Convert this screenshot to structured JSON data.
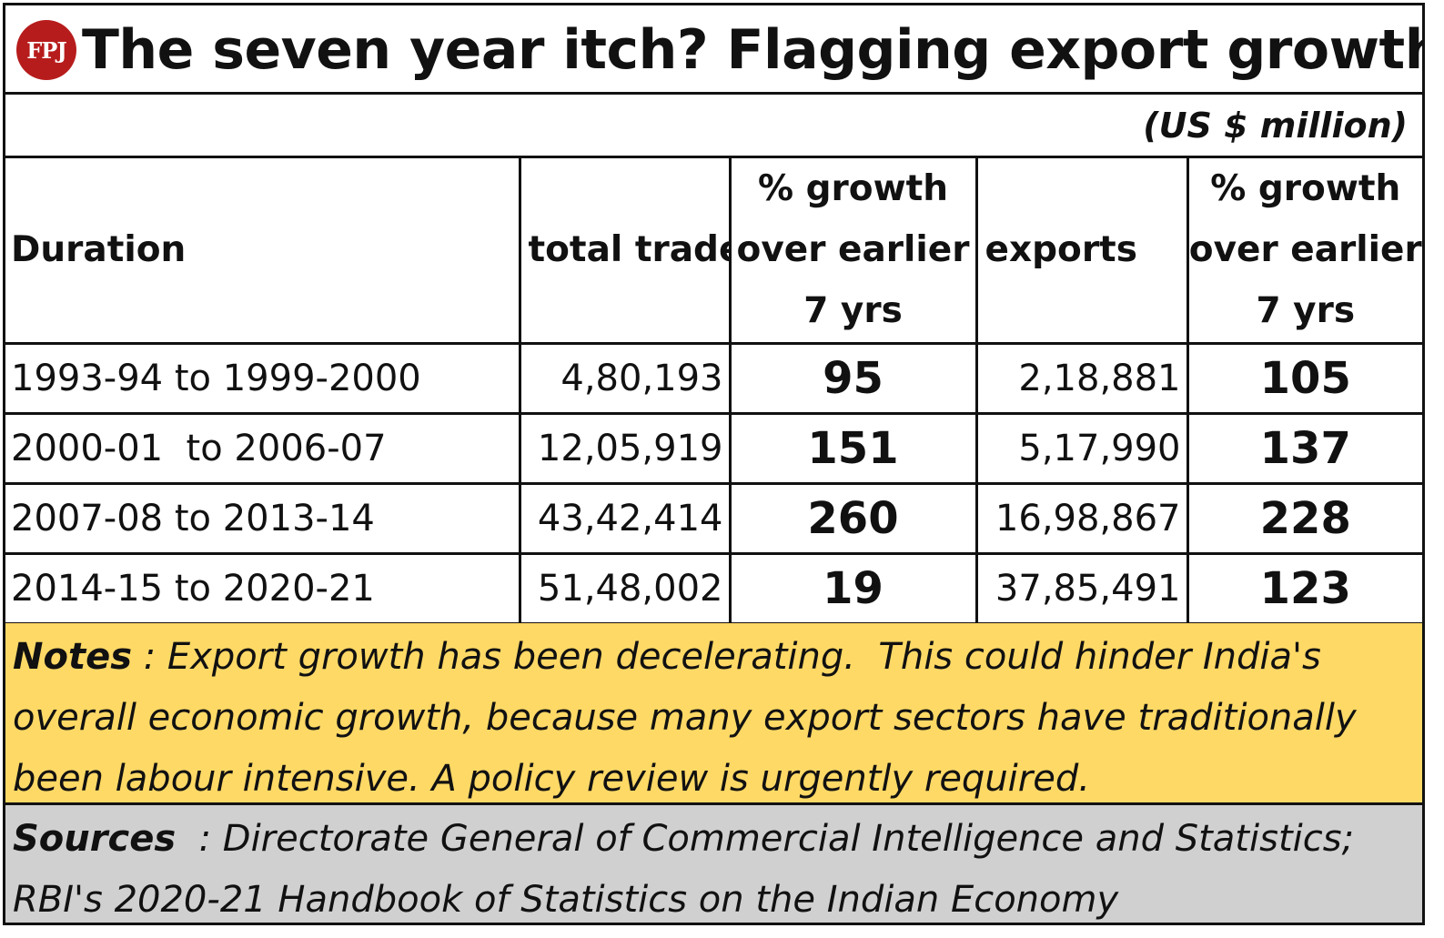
{
  "header": {
    "logo_text": "FPJ",
    "title": "The seven year itch? Flagging export growth",
    "unit": "(US $ million)"
  },
  "colors": {
    "logo": "#b71c1c",
    "notes_bg": "#ffd966",
    "sources_bg": "#d0d0d0"
  },
  "chart_data": {
    "type": "table",
    "title": "The seven year itch? Flagging export growth",
    "unit": "(US $ million)",
    "columns": [
      "Duration",
      "total trade",
      [
        "% growth",
        "over earlier",
        "7 yrs"
      ],
      "exports",
      [
        "% growth",
        "over earlier",
        "7 yrs"
      ]
    ],
    "rows": [
      [
        "1993-94 to 1999-2000",
        "4,80,193",
        "95",
        "2,18,881",
        "105"
      ],
      [
        "2000-01  to 2006-07",
        "12,05,919",
        "151",
        "5,17,990",
        "137"
      ],
      [
        "2007-08 to 2013-14",
        "43,42,414",
        "260",
        "16,98,867",
        "228"
      ],
      [
        "2014-15 to 2020-21",
        "51,48,002",
        "19",
        "37,85,491",
        "123"
      ]
    ]
  },
  "notes": {
    "label": "Notes",
    "text": " : Export growth has been decelerating.  This could hinder India's overall economic growth, because many export sectors have traditionally been labour intensive. A policy review is urgently required."
  },
  "sources": {
    "label": "Sources",
    "text": "  : Directorate General of Commercial Intelligence and Statistics; RBI's 2020-21 Handbook of Statistics on the Indian Economy"
  }
}
